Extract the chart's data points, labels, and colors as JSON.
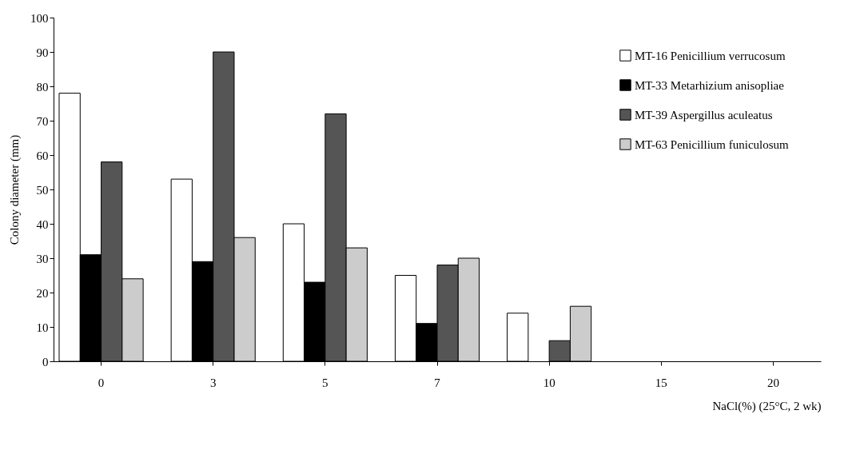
{
  "chart_data": {
    "type": "bar",
    "xlabel": "NaCl(%) (25°C, 2 wk)",
    "ylabel": "Colony diameter (mm)",
    "categories": [
      "0",
      "3",
      "5",
      "7",
      "10",
      "15",
      "20"
    ],
    "series": [
      {
        "name": "MT-16 Penicillium verrucosum",
        "color": "#ffffff",
        "values": [
          78,
          53,
          40,
          25,
          14,
          null,
          null
        ]
      },
      {
        "name": "MT-33 Metarhizium anisopliae",
        "color": "#000000",
        "values": [
          31,
          29,
          23,
          11,
          null,
          null,
          null
        ]
      },
      {
        "name": "MT-39 Aspergillus aculeatus",
        "color": "#555555",
        "values": [
          58,
          90,
          72,
          28,
          6,
          null,
          null
        ]
      },
      {
        "name": "MT-63 Penicillium funiculosum",
        "color": "#cccccc",
        "values": [
          24,
          36,
          33,
          30,
          16,
          null,
          null
        ]
      }
    ],
    "ylim": [
      0,
      100
    ],
    "yticks": [
      0,
      10,
      20,
      30,
      40,
      50,
      60,
      70,
      80,
      90,
      100
    ],
    "grid": false,
    "legend": "top right"
  }
}
